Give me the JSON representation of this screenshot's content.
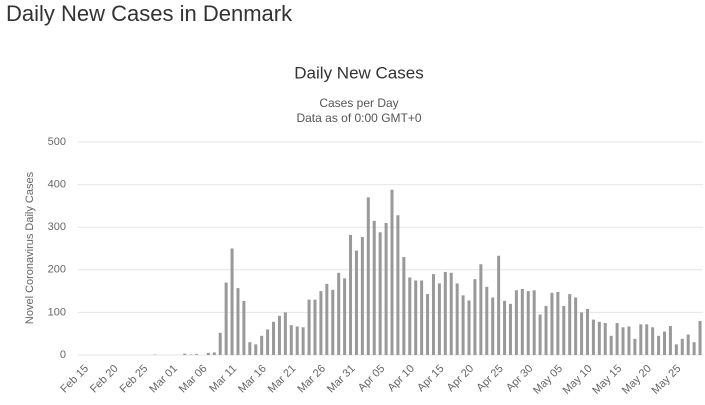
{
  "page_title": "Daily New Cases in Denmark",
  "chart_data": {
    "type": "bar",
    "title": "Daily New Cases",
    "subtitle": [
      "Cases per Day",
      "Data as of 0:00 GMT+0"
    ],
    "y_label": "Novel Coronavirus Daily Cases",
    "color": "#999999",
    "grid": true,
    "ylim": [
      0,
      500
    ],
    "yticks": [
      0,
      100,
      200,
      300,
      400,
      500
    ],
    "categories": [
      "Feb 15",
      null,
      null,
      null,
      null,
      "Feb 20",
      null,
      null,
      null,
      null,
      "Feb 25",
      null,
      null,
      null,
      null,
      "Mar 01",
      null,
      null,
      null,
      null,
      "Mar 06",
      null,
      null,
      null,
      null,
      "Mar 11",
      null,
      null,
      null,
      null,
      "Mar 16",
      null,
      null,
      null,
      null,
      "Mar 21",
      null,
      null,
      null,
      null,
      "Mar 26",
      null,
      null,
      null,
      null,
      "Mar 31",
      null,
      null,
      null,
      null,
      "Apr 05",
      null,
      null,
      null,
      null,
      "Apr 10",
      null,
      null,
      null,
      null,
      "Apr 15",
      null,
      null,
      null,
      null,
      "Apr 20",
      null,
      null,
      null,
      null,
      "Apr 25",
      null,
      null,
      null,
      null,
      "Apr 30",
      null,
      null,
      null,
      null,
      "May 05",
      null,
      null,
      null,
      null,
      "May 10",
      null,
      null,
      null,
      null,
      "May 15",
      null,
      null,
      null,
      null,
      "May 20",
      null,
      null,
      null,
      null,
      "May 25",
      null,
      null,
      null,
      null
    ],
    "values": [
      0,
      0,
      0,
      0,
      0,
      0,
      0,
      0,
      0,
      0,
      0,
      0,
      1,
      0,
      0,
      0,
      0,
      3,
      1,
      2,
      0,
      5,
      6,
      52,
      170,
      250,
      157,
      127,
      30,
      25,
      45,
      60,
      78,
      92,
      100,
      70,
      67,
      65,
      130,
      130,
      150,
      167,
      153,
      193,
      180,
      282,
      245,
      277,
      370,
      315,
      288,
      310,
      388,
      328,
      230,
      182,
      175,
      175,
      143,
      190,
      168,
      195,
      193,
      168,
      140,
      128,
      178,
      213,
      160,
      135,
      233,
      127,
      120,
      152,
      155,
      150,
      152,
      95,
      115,
      146,
      148,
      115,
      143,
      135,
      100,
      108,
      83,
      78,
      75,
      45,
      75,
      65,
      67,
      38,
      72,
      72,
      65,
      45,
      55,
      68,
      25,
      38,
      48,
      30,
      80
    ]
  }
}
